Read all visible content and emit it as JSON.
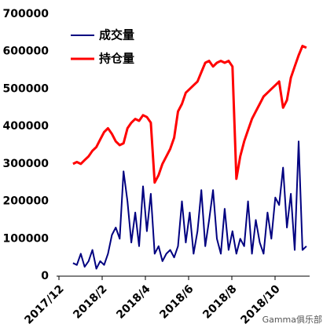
{
  "chart_data": {
    "type": "line",
    "x": [
      12.65,
      12.83,
      13.01,
      13.19,
      13.37,
      13.55,
      13.73,
      13.91,
      14.09,
      14.27,
      14.45,
      14.63,
      14.81,
      14.99,
      15.17,
      15.35,
      15.53,
      15.71,
      15.89,
      16.07,
      16.25,
      16.43,
      16.61,
      16.79,
      16.97,
      17.15,
      17.33,
      17.51,
      17.69,
      17.87,
      18.05,
      18.23,
      18.41,
      18.59,
      18.77,
      18.95,
      19.13,
      19.31,
      19.49,
      19.67,
      19.85,
      20.03,
      20.21,
      20.39,
      20.57,
      20.75,
      20.93,
      21.11,
      21.29,
      21.47,
      21.65,
      21.83,
      22.01,
      22.19,
      22.37,
      22.55,
      22.73,
      22.91,
      23.09,
      23.27,
      23.45
    ],
    "series": [
      {
        "name": "成交量",
        "color": "#000080",
        "values": [
          35000,
          30000,
          60000,
          25000,
          40000,
          70000,
          20000,
          40000,
          30000,
          60000,
          110000,
          130000,
          100000,
          280000,
          200000,
          90000,
          170000,
          80000,
          240000,
          120000,
          220000,
          60000,
          80000,
          40000,
          60000,
          70000,
          50000,
          80000,
          200000,
          90000,
          170000,
          60000,
          120000,
          230000,
          80000,
          150000,
          230000,
          100000,
          60000,
          180000,
          70000,
          120000,
          60000,
          100000,
          80000,
          200000,
          60000,
          150000,
          90000,
          60000,
          170000,
          100000,
          210000,
          190000,
          290000,
          130000,
          220000,
          70000,
          360000,
          70000,
          80000
        ]
      },
      {
        "name": "持仓量",
        "color": "#ff0000",
        "values": [
          300000,
          305000,
          300000,
          310000,
          320000,
          335000,
          345000,
          365000,
          385000,
          395000,
          380000,
          360000,
          350000,
          355000,
          395000,
          410000,
          420000,
          415000,
          430000,
          425000,
          410000,
          250000,
          270000,
          300000,
          320000,
          340000,
          370000,
          440000,
          460000,
          490000,
          500000,
          510000,
          520000,
          545000,
          570000,
          575000,
          560000,
          570000,
          575000,
          570000,
          575000,
          560000,
          260000,
          320000,
          360000,
          390000,
          420000,
          440000,
          460000,
          480000,
          490000,
          500000,
          510000,
          520000,
          450000,
          470000,
          530000,
          560000,
          590000,
          615000,
          610000
        ]
      }
    ],
    "xlim": [
      12,
      23.6
    ],
    "xticks": [
      {
        "value": 12,
        "label": "2017/12"
      },
      {
        "value": 14,
        "label": "2018/2"
      },
      {
        "value": 16,
        "label": "2018/4"
      },
      {
        "value": 18,
        "label": "2018/6"
      },
      {
        "value": 20,
        "label": "2018/8"
      },
      {
        "value": 22,
        "label": "2018/10"
      }
    ],
    "ylim": [
      0,
      700000
    ],
    "yticks": [
      0,
      100000,
      200000,
      300000,
      400000,
      500000,
      600000,
      700000
    ],
    "legend": "upper-left",
    "watermark": "Gamma俱乐部"
  }
}
